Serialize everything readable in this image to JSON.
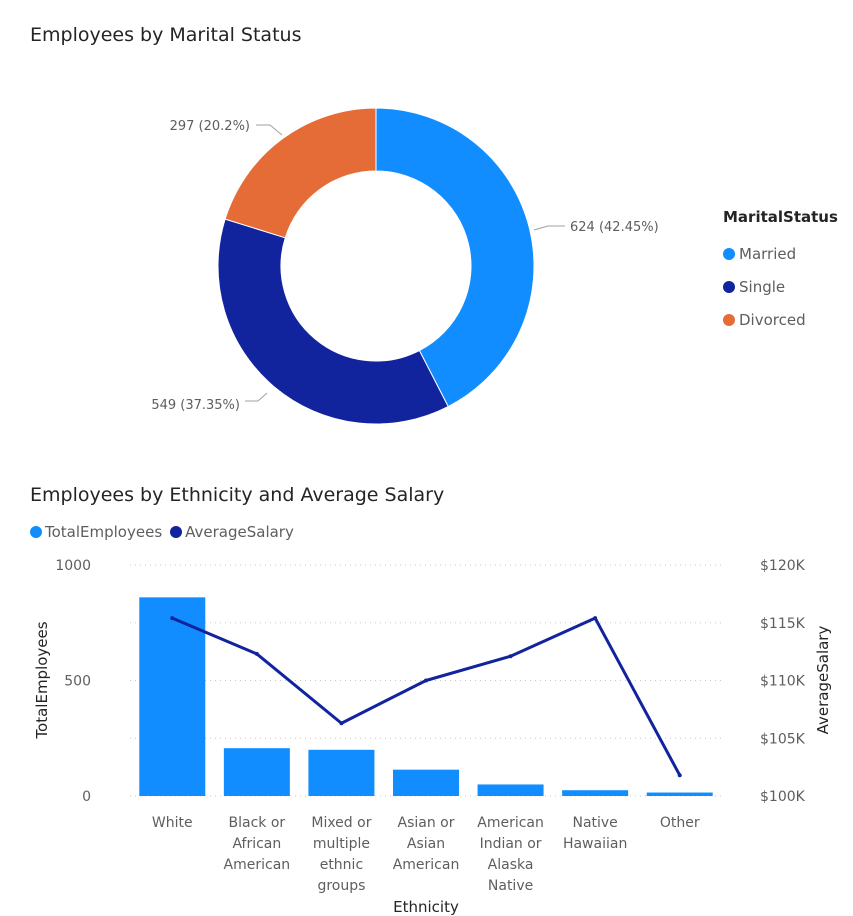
{
  "chart_data": [
    {
      "type": "pie",
      "title": "Employees by Marital Status",
      "legend_title": "MaritalStatus",
      "legend_position": "right",
      "slices": [
        {
          "label": "Married",
          "value": 624,
          "percent": 42.45,
          "data_label": "624 (42.45%)",
          "color": "#118dff"
        },
        {
          "label": "Single",
          "value": 549,
          "percent": 37.35,
          "data_label": "549 (37.35%)",
          "color": "#12239e"
        },
        {
          "label": "Divorced",
          "value": 297,
          "percent": 20.2,
          "data_label": "297 (20.2%)",
          "color": "#e66c37"
        }
      ]
    },
    {
      "type": "bar",
      "title": "Employees by Ethnicity and Average Salary",
      "xlabel": "Ethnicity",
      "ylabel": "TotalEmployees",
      "y2label": "AverageSalary",
      "legend_position": "top-left",
      "categories": [
        [
          "White"
        ],
        [
          "Black or",
          "African",
          "American"
        ],
        [
          "Mixed or",
          "multiple",
          "ethnic",
          "groups"
        ],
        [
          "Asian or",
          "Asian",
          "American"
        ],
        [
          "American",
          "Indian or",
          "Alaska",
          "Native"
        ],
        [
          "Native",
          "Hawaiian"
        ],
        [
          "Other"
        ]
      ],
      "ylim": [
        0,
        1000
      ],
      "yticks": [
        {
          "value": 0,
          "label": "0"
        },
        {
          "value": 500,
          "label": "500"
        },
        {
          "value": 1000,
          "label": "1000"
        }
      ],
      "y2lim": [
        100000,
        120000
      ],
      "y2ticks": [
        {
          "value": 100000,
          "label": "$100K"
        },
        {
          "value": 105000,
          "label": "$105K"
        },
        {
          "value": 110000,
          "label": "$110K"
        },
        {
          "value": 115000,
          "label": "$115K"
        },
        {
          "value": 120000,
          "label": "$120K"
        }
      ],
      "grid": true,
      "series": [
        {
          "name": "TotalEmployees",
          "type": "bar",
          "axis": "left",
          "color": "#118dff",
          "values": [
            860,
            207,
            200,
            114,
            50,
            25,
            15
          ]
        },
        {
          "name": "AverageSalary",
          "type": "line",
          "axis": "right",
          "color": "#12239e",
          "values": [
            115400,
            112300,
            106300,
            110000,
            112100,
            115400,
            101800
          ]
        }
      ]
    }
  ]
}
